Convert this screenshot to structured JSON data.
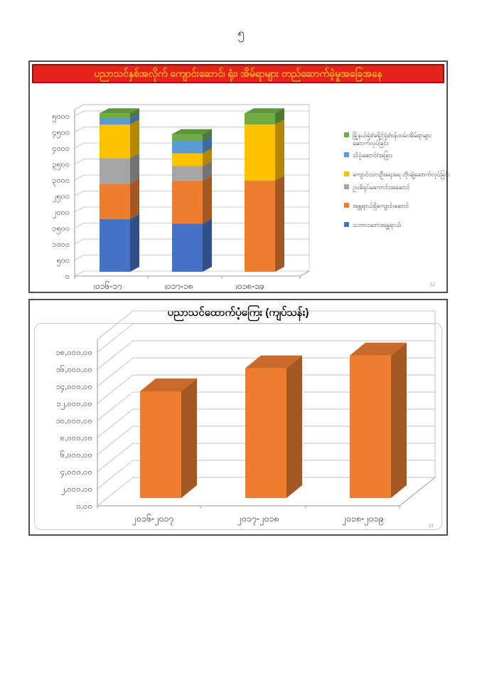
{
  "page": {
    "number": "၅"
  },
  "chart1": {
    "banner_title": "ပညာသင်နှစ်အလိုက် ကျောင်းဆောင်၊ ရုံး၊ အိမ်ရာများ တည်ဆောက်ခဲ့မှုအခြေအနေ",
    "slide_number": "12",
    "banner_bg": "#e3231c",
    "banner_border": "#8f120d",
    "banner_text_color": "#fbb616"
  },
  "chart2": {
    "title": "ပညာသင်ထောက်ပံ့ကြေး (ကျပ်သန်း)",
    "slide_number": "11"
  },
  "chart_data": [
    {
      "type": "bar",
      "stacked": true,
      "effect": "3d",
      "title": "ပညာသင်နှစ်အလိုက် ကျောင်းဆောင်၊ ရုံး၊ အိမ်ရာများ တည်ဆောက်ခဲ့မှုအခြေအနေ",
      "categories": [
        "၂၀၁၆-၁၇",
        "၂၀၁၇-၁၈",
        "၂၀၁၈-၁၉"
      ],
      "categories_latin": [
        "2016-17",
        "2017-18",
        "2018-19"
      ],
      "series": [
        {
          "name": "သဘာဝဘေးအန္တရာယ်",
          "color": "#4472C4",
          "values": [
            1650,
            1500,
            0
          ]
        },
        {
          "name": "အန္တရာယ်ရှိကျောင်းဆောင်",
          "color": "#ED7D31",
          "values": [
            1100,
            1350,
            2850
          ]
        },
        {
          "name": "ဥပဓိရုပ်မကောင်းအဆောင်",
          "color": "#A5A5A5",
          "values": [
            800,
            450,
            0
          ]
        },
        {
          "name": "ကျောင်းသားဦးရေအရ တိုးချဲ့ဆောက်လုပ်ခြင်း",
          "color": "#FFC000",
          "values": [
            1050,
            400,
            1750
          ]
        },
        {
          "name": "သိပ္ပံဆောင်/အခြား",
          "color": "#5B9BD5",
          "values": [
            200,
            400,
            0
          ]
        },
        {
          "name": "မြို့နယ်ရုံး/ခရိုင်ရုံး/ဝန်ထမ်းအိမ်ရာများဆောက်လုပ်ခြင်း",
          "color": "#70AD47",
          "values": [
            150,
            200,
            350
          ]
        }
      ],
      "ylim": [
        0,
        5000
      ],
      "ytick_step": 500,
      "ytick_labels": [
        "၀",
        "၅၀၀",
        "၁၀၀၀",
        "၁၅၀၀",
        "၂၀၀၀",
        "၂၅၀၀",
        "၃၀၀၀",
        "၃၅၀၀",
        "၄၀၀၀",
        "၄၅၀၀",
        "၅၀၀၀"
      ],
      "grid": true,
      "legend_position": "right",
      "legend_order": "reversed"
    },
    {
      "type": "bar",
      "stacked": false,
      "effect": "3d",
      "title": "ပညာသင်ထောက်ပံ့ကြေး (ကျပ်သန်း)",
      "categories": [
        "၂၀၁၆-၂၀၁၇",
        "၂၀၁၇-၂၀၁၈",
        "၂၀၁၈-၂၀၁၉"
      ],
      "categories_latin": [
        "2016-2017",
        "2017-2018",
        "2018-2019"
      ],
      "values": [
        12500,
        15200,
        16700
      ],
      "bar_color": "#ED7D31",
      "ylim": [
        0,
        18000
      ],
      "ytick_step": 2000,
      "ytick_labels": [
        "၀.၀၀",
        "၂,၀၀၀.၀၀",
        "၄,၀၀၀.၀၀",
        "၆,၀၀၀.၀၀",
        "၈,၀၀၀.၀၀",
        "၁၀,၀၀၀.၀၀",
        "၁၂,၀၀၀.၀၀",
        "၁၄,၀၀၀.၀၀",
        "၁၆,၀၀၀.၀၀",
        "၁၈,၀၀၀.၀၀"
      ],
      "grid": true,
      "legend_position": "none"
    }
  ]
}
